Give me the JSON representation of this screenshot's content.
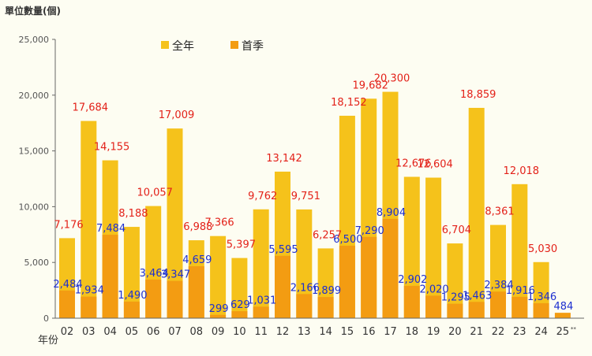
{
  "chart_data": {
    "type": "bar",
    "title": "",
    "unit_label": "單位數量(個)",
    "xlabel": "年份",
    "ylabel": "",
    "ylim": [
      0,
      25000
    ],
    "yticks": [
      "0",
      "5,000",
      "10,000",
      "15,000",
      "20,000",
      "25,000"
    ],
    "ytick_values": [
      0,
      5000,
      10000,
      15000,
      20000,
      25000
    ],
    "categories": [
      "02",
      "03",
      "04",
      "05",
      "06",
      "07",
      "08",
      "09",
      "10",
      "11",
      "12",
      "13",
      "14",
      "15",
      "16",
      "17",
      "18",
      "19",
      "20",
      "21",
      "22",
      "23",
      "24",
      "25"
    ],
    "category_suffix": {
      "index": 23,
      "text": "**"
    },
    "legend_position": "top-left",
    "grid": false,
    "series": [
      {
        "name": "全年",
        "color": "#f5c21b",
        "label_color": "#e32119",
        "values": [
          7176,
          17684,
          14155,
          8188,
          10057,
          17009,
          6988,
          7366,
          5397,
          9762,
          13142,
          9751,
          6257,
          18152,
          19682,
          20300,
          12676,
          12604,
          6704,
          18859,
          8361,
          12018,
          5030,
          null
        ],
        "labels": [
          "7,176",
          "17,684",
          "14,155",
          "8,188",
          "10,057",
          "17,009",
          "6,988",
          "7,366",
          "5,397",
          "9,762",
          "13,142",
          "9,751",
          "6,257",
          "18,152",
          "19,682",
          "20,300",
          "12,676",
          "12,604",
          "6,704",
          "18,859",
          "8,361",
          "12,018",
          "5,030",
          ""
        ]
      },
      {
        "name": "首季",
        "color": "#f39c12",
        "label_color": "#1d2fd0",
        "values": [
          2484,
          1934,
          7484,
          1490,
          3464,
          3347,
          4659,
          299,
          629,
          1031,
          5595,
          2166,
          1899,
          6500,
          7290,
          8904,
          2902,
          2020,
          1295,
          1463,
          2384,
          1916,
          1346,
          484
        ],
        "labels": [
          "2,484",
          "1,934",
          "7,484",
          "1,490",
          "3,464",
          "3,347",
          "4,659",
          "299",
          "629",
          "1,031",
          "5,595",
          "2,166",
          "1,899",
          "6,500",
          "7,290",
          "8,904",
          "2,902",
          "2,020",
          "1,295",
          "1,463",
          "2,384",
          "1,916",
          "1,346",
          "484"
        ]
      }
    ]
  }
}
